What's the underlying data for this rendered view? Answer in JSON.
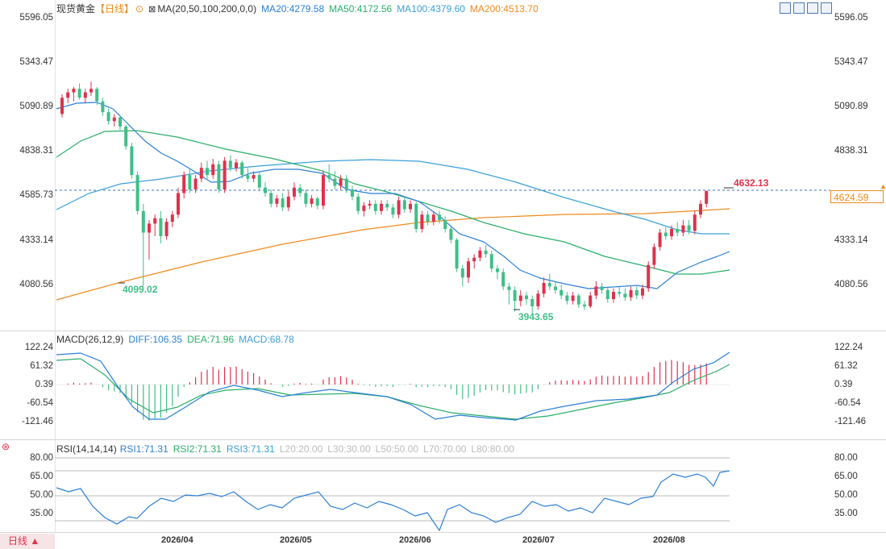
{
  "instrument": {
    "name": "现货黄金",
    "period": "【日线】",
    "ma_label": "MA(20,50,100,200,0,0)",
    "ma20": "MA20:4279.58",
    "ma50": "MA50:4172.56",
    "ma100": "MA100:4379.60",
    "ma200": "MA200:4513.70"
  },
  "colors": {
    "up": "#e0314b",
    "down": "#3fbf87",
    "ma20": "#2c7fd6",
    "ma50": "#2aae6a",
    "ma100": "#3aa0d8",
    "ma200": "#ef8a1c",
    "dash": "#3a6fc4"
  },
  "price_axis": [
    "5596.05",
    "5343.47",
    "5090.89",
    "4838.31",
    "4585.73",
    "4333.14",
    "4080.56"
  ],
  "current_price": "4624.59",
  "annotations": {
    "high_label": "4632.13",
    "low1_label": "4099.02",
    "low2_label": "3943.65"
  },
  "macd": {
    "label": "MACD(26,12,9)",
    "diff": "DIFF:106.35",
    "dea": "DEA:71.96",
    "macd": "MACD:68.78",
    "axis": [
      "122.24",
      "61.32",
      "0.39",
      "-60.54",
      "-121.46"
    ]
  },
  "rsi": {
    "label": "RSI(14,14,14)",
    "rsi1": "RSI1:71.31",
    "rsi2": "RSI2:71.31",
    "rsi3": "RSI3:71.31",
    "l20": "L20:20.00",
    "l30": "L30:30.00",
    "l50": "L50:50.00",
    "l70": "L70:70.00",
    "l80": "L80:80.00",
    "axis": [
      "80.00",
      "65.00",
      "50.00",
      "35.00"
    ]
  },
  "time_axis": [
    "2026/04",
    "2026/05",
    "2026/06",
    "2026/07",
    "2026/08"
  ],
  "period_selector": "日线 ▲",
  "chart_data": {
    "type": "candlestick",
    "price_range": [
      3900,
      5640
    ],
    "candles": [
      [
        5060,
        5150,
        5040,
        5170
      ],
      [
        5150,
        5180,
        5120,
        5200
      ],
      [
        5180,
        5200,
        5130,
        5210
      ],
      [
        5200,
        5150,
        5140,
        5230
      ],
      [
        5150,
        5180,
        5120,
        5200
      ],
      [
        5180,
        5200,
        5160,
        5240
      ],
      [
        5200,
        5130,
        5110,
        5210
      ],
      [
        5130,
        5070,
        5050,
        5150
      ],
      [
        5070,
        5020,
        5000,
        5090
      ],
      [
        5020,
        5040,
        4990,
        5060
      ],
      [
        5040,
        4990,
        4970,
        5050
      ],
      [
        4990,
        4880,
        4860,
        5000
      ],
      [
        4880,
        4720,
        4700,
        4900
      ],
      [
        4720,
        4520,
        4500,
        4740
      ],
      [
        4520,
        4400,
        4099,
        4560
      ],
      [
        4400,
        4450,
        4250,
        4470
      ],
      [
        4450,
        4480,
        4380,
        4500
      ],
      [
        4480,
        4380,
        4340,
        4520
      ],
      [
        4380,
        4460,
        4360,
        4480
      ],
      [
        4460,
        4500,
        4430,
        4520
      ],
      [
        4500,
        4620,
        4480,
        4650
      ],
      [
        4620,
        4720,
        4590,
        4740
      ],
      [
        4720,
        4640,
        4620,
        4760
      ],
      [
        4640,
        4700,
        4620,
        4720
      ],
      [
        4700,
        4760,
        4680,
        4790
      ],
      [
        4760,
        4720,
        4700,
        4800
      ],
      [
        4720,
        4780,
        4700,
        4810
      ],
      [
        4780,
        4640,
        4620,
        4800
      ],
      [
        4640,
        4800,
        4620,
        4820
      ],
      [
        4800,
        4760,
        4740,
        4830
      ],
      [
        4760,
        4790,
        4740,
        4810
      ],
      [
        4790,
        4720,
        4700,
        4800
      ],
      [
        4720,
        4700,
        4680,
        4760
      ],
      [
        4700,
        4720,
        4680,
        4740
      ],
      [
        4720,
        4650,
        4630,
        4740
      ],
      [
        4650,
        4620,
        4600,
        4680
      ],
      [
        4620,
        4560,
        4540,
        4640
      ],
      [
        4560,
        4590,
        4540,
        4610
      ],
      [
        4590,
        4540,
        4520,
        4620
      ],
      [
        4540,
        4600,
        4520,
        4630
      ],
      [
        4600,
        4650,
        4580,
        4680
      ],
      [
        4650,
        4620,
        4600,
        4670
      ],
      [
        4620,
        4560,
        4540,
        4640
      ],
      [
        4560,
        4590,
        4540,
        4610
      ],
      [
        4590,
        4550,
        4530,
        4600
      ],
      [
        4550,
        4720,
        4530,
        4740
      ],
      [
        4720,
        4700,
        4680,
        4780
      ],
      [
        4700,
        4660,
        4640,
        4740
      ],
      [
        4660,
        4700,
        4640,
        4720
      ],
      [
        4700,
        4640,
        4620,
        4720
      ],
      [
        4640,
        4600,
        4580,
        4660
      ],
      [
        4600,
        4520,
        4500,
        4620
      ],
      [
        4520,
        4550,
        4490,
        4570
      ],
      [
        4550,
        4560,
        4530,
        4580
      ],
      [
        4560,
        4520,
        4500,
        4580
      ],
      [
        4520,
        4560,
        4500,
        4580
      ],
      [
        4560,
        4540,
        4520,
        4580
      ],
      [
        4540,
        4500,
        4480,
        4560
      ],
      [
        4500,
        4580,
        4480,
        4600
      ],
      [
        4580,
        4530,
        4510,
        4600
      ],
      [
        4530,
        4560,
        4510,
        4580
      ],
      [
        4560,
        4420,
        4400,
        4570
      ],
      [
        4420,
        4500,
        4400,
        4520
      ],
      [
        4500,
        4460,
        4440,
        4520
      ],
      [
        4460,
        4500,
        4440,
        4520
      ],
      [
        4500,
        4470,
        4450,
        4520
      ],
      [
        4470,
        4420,
        4400,
        4490
      ],
      [
        4420,
        4360,
        4340,
        4440
      ],
      [
        4360,
        4200,
        4180,
        4370
      ],
      [
        4200,
        4150,
        4100,
        4220
      ],
      [
        4150,
        4240,
        4120,
        4260
      ],
      [
        4240,
        4260,
        4200,
        4280
      ],
      [
        4260,
        4300,
        4240,
        4320
      ],
      [
        4300,
        4280,
        4260,
        4330
      ],
      [
        4280,
        4200,
        4180,
        4300
      ],
      [
        4200,
        4180,
        4140,
        4220
      ],
      [
        4180,
        4100,
        4080,
        4200
      ],
      [
        4100,
        4080,
        4000,
        4120
      ],
      [
        4080,
        4020,
        3960,
        4100
      ],
      [
        4020,
        4050,
        3990,
        4080
      ],
      [
        4050,
        4030,
        4000,
        4070
      ],
      [
        4030,
        3990,
        3943,
        4050
      ],
      [
        3990,
        4060,
        3970,
        4080
      ],
      [
        4060,
        4120,
        4040,
        4150
      ],
      [
        4120,
        4100,
        4080,
        4170
      ],
      [
        4100,
        4080,
        4060,
        4130
      ],
      [
        4080,
        4050,
        4030,
        4110
      ],
      [
        4050,
        4020,
        4000,
        4070
      ],
      [
        4020,
        4050,
        4000,
        4070
      ],
      [
        4050,
        4000,
        3980,
        4060
      ],
      [
        4000,
        3990,
        3970,
        4020
      ],
      [
        3990,
        4050,
        3980,
        4070
      ],
      [
        4050,
        4100,
        4030,
        4130
      ],
      [
        4100,
        4080,
        4060,
        4120
      ],
      [
        4080,
        4030,
        4010,
        4100
      ],
      [
        4030,
        4070,
        4010,
        4090
      ],
      [
        4070,
        4060,
        4040,
        4100
      ],
      [
        4060,
        4040,
        4020,
        4090
      ],
      [
        4040,
        4080,
        4020,
        4100
      ],
      [
        4080,
        4050,
        4030,
        4100
      ],
      [
        4050,
        4090,
        4030,
        4110
      ],
      [
        4090,
        4220,
        4070,
        4240
      ],
      [
        4220,
        4320,
        4200,
        4340
      ],
      [
        4320,
        4400,
        4300,
        4420
      ],
      [
        4400,
        4380,
        4360,
        4430
      ],
      [
        4380,
        4420,
        4360,
        4440
      ],
      [
        4420,
        4400,
        4380,
        4460
      ],
      [
        4400,
        4440,
        4380,
        4470
      ],
      [
        4440,
        4410,
        4390,
        4470
      ],
      [
        4410,
        4500,
        4390,
        4520
      ],
      [
        4500,
        4560,
        4480,
        4580
      ],
      [
        4560,
        4632,
        4540,
        4632
      ]
    ]
  }
}
